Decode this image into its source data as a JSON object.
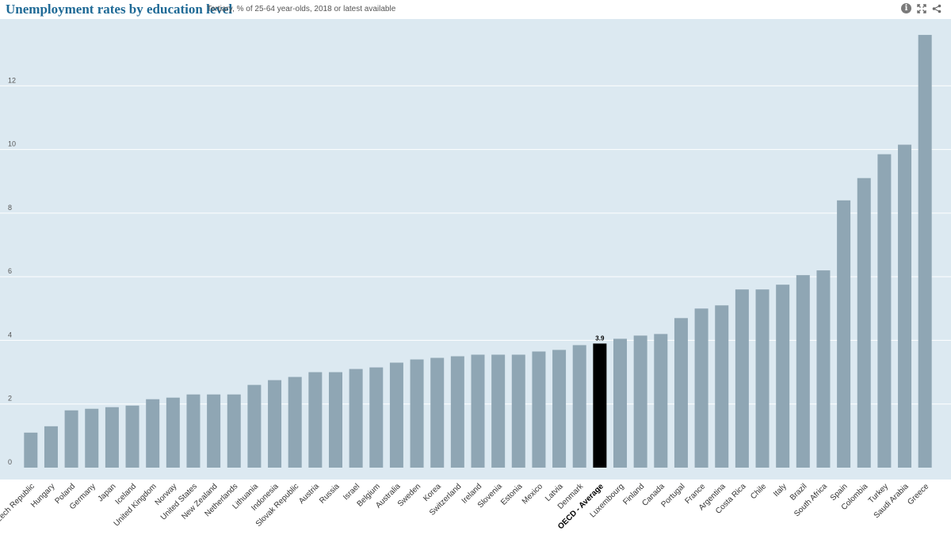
{
  "header": {
    "title": "Unemployment rates by education level",
    "subtitle": "Tertiary, % of 25-64 year-olds, 2018 or latest available",
    "tools": [
      "info-icon",
      "fullscreen-icon",
      "share-icon"
    ]
  },
  "colors": {
    "plot_background": "#dce9f1",
    "bar": "#8fa6b4",
    "highlight_bar": "#000000",
    "gridline": "#ffffff"
  },
  "chart_data": {
    "type": "bar",
    "title": "Unemployment rates by education level",
    "subtitle": "Tertiary, % of 25-64 year-olds, 2018 or latest available",
    "categories": [
      "Czech Republic",
      "Hungary",
      "Poland",
      "Germany",
      "Japan",
      "Iceland",
      "United Kingdom",
      "Norway",
      "United States",
      "New Zealand",
      "Netherlands",
      "Lithuania",
      "Indonesia",
      "Slovak Republic",
      "Austria",
      "Russia",
      "Israel",
      "Belgium",
      "Australia",
      "Sweden",
      "Korea",
      "Switzerland",
      "Ireland",
      "Slovenia",
      "Estonia",
      "Mexico",
      "Latvia",
      "Denmark",
      "OECD - Average",
      "Luxembourg",
      "Finland",
      "Canada",
      "Portugal",
      "France",
      "Argentina",
      "Costa Rica",
      "Chile",
      "Italy",
      "Brazil",
      "South Africa",
      "Spain",
      "Colombia",
      "Turkey",
      "Saudi Arabia",
      "Greece"
    ],
    "values": [
      1.1,
      1.3,
      1.8,
      1.85,
      1.9,
      1.95,
      2.15,
      2.2,
      2.3,
      2.3,
      2.3,
      2.6,
      2.75,
      2.85,
      3.0,
      3.0,
      3.1,
      3.15,
      3.3,
      3.4,
      3.45,
      3.5,
      3.55,
      3.55,
      3.55,
      3.65,
      3.7,
      3.85,
      3.9,
      4.05,
      4.15,
      4.2,
      4.7,
      5.0,
      5.1,
      5.6,
      5.6,
      5.75,
      6.05,
      6.2,
      8.4,
      9.1,
      9.85,
      10.15,
      13.6
    ],
    "highlight": "OECD - Average",
    "data_labels": [
      {
        "category": "OECD - Average",
        "text": "3.9"
      }
    ],
    "ylim": [
      0,
      14
    ],
    "yticks": [
      0,
      2,
      4,
      6,
      8,
      10,
      12
    ],
    "xlabel": "",
    "ylabel": "",
    "grid": true,
    "legend": "none"
  }
}
